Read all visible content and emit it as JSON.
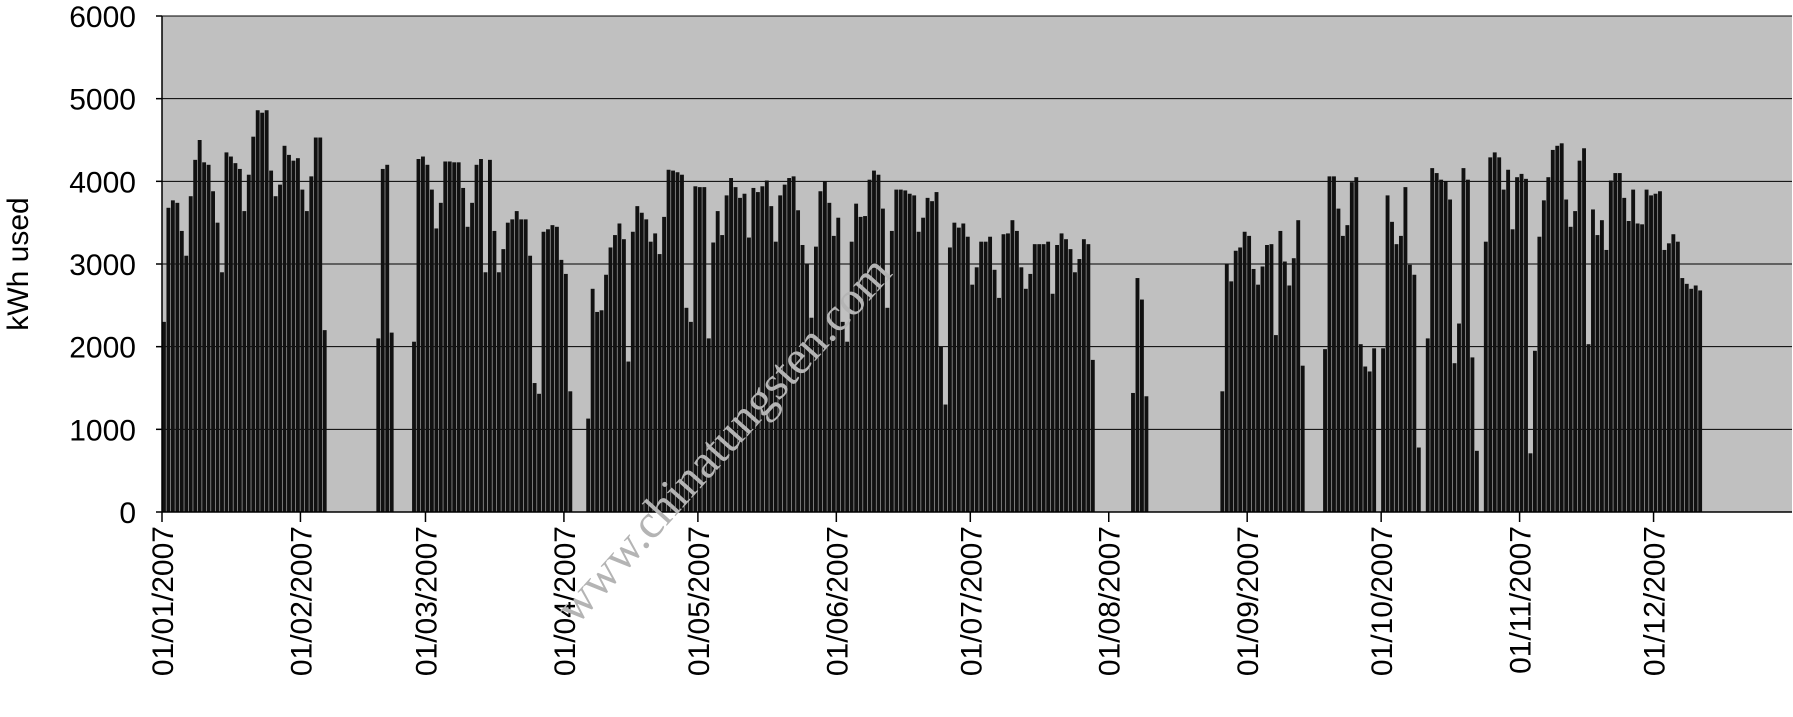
{
  "chart_data": {
    "type": "bar",
    "title": "",
    "xlabel": "",
    "ylabel": "kWh used",
    "ylim": [
      0,
      6000
    ],
    "y_ticks": [
      0,
      1000,
      2000,
      3000,
      4000,
      5000,
      6000
    ],
    "x_range": [
      "2007-01-01",
      "2008-01-01"
    ],
    "grid": true,
    "plot_background": "#c0c0c0",
    "bar_color": "#111111",
    "x_tick_labels": [
      {
        "date": "2007-01-01",
        "label": "01/01/2007"
      },
      {
        "date": "2007-02-01",
        "label": "01/02/2007"
      },
      {
        "date": "2007-03-01",
        "label": "01/03/2007"
      },
      {
        "date": "2007-04-01",
        "label": "01/04/2007"
      },
      {
        "date": "2007-05-01",
        "label": "01/05/2007"
      },
      {
        "date": "2007-06-01",
        "label": "01/06/2007"
      },
      {
        "date": "2007-07-01",
        "label": "01/07/2007"
      },
      {
        "date": "2007-08-01",
        "label": "01/08/2007"
      },
      {
        "date": "2007-09-01",
        "label": "01/09/2007"
      },
      {
        "date": "2007-10-01",
        "label": "01/10/2007"
      },
      {
        "date": "2007-11-01",
        "label": "01/11/2007"
      },
      {
        "date": "2007-12-01",
        "label": "01/12/2007"
      }
    ],
    "series": [
      {
        "start_date": "2007-01-01",
        "values": [
          2300,
          3680,
          3770,
          3740,
          3400,
          3100,
          3820,
          4260,
          4500,
          4230,
          4200,
          3880,
          3500,
          2900,
          4350,
          4300,
          4220,
          4150,
          3640,
          4080,
          4540,
          4860,
          4830,
          4860,
          4130,
          3820,
          3960,
          4430,
          4320,
          4250,
          4280,
          3900,
          3640,
          4060,
          4530,
          4530,
          2200,
          null,
          null,
          null,
          null,
          null,
          null,
          null,
          null,
          null,
          null,
          null,
          2100,
          4150,
          4200,
          2170,
          null,
          null,
          null,
          null,
          2060,
          4270,
          4300,
          4200,
          3900,
          3430,
          3740,
          4240,
          4240,
          4230,
          4230,
          3920,
          3450,
          3740,
          4200,
          4270,
          2900,
          4260,
          3400,
          2900,
          3180,
          3500,
          3540,
          3640,
          3540,
          3540,
          3100,
          1560,
          1430,
          3390,
          3420,
          3470,
          3450,
          3050,
          2880,
          1460,
          null,
          null,
          null,
          1130,
          2700,
          2420,
          2440,
          2870,
          3200,
          3350,
          3490,
          3300,
          1820,
          3390,
          3700,
          3620,
          3540,
          3270,
          3370,
          3120,
          3570,
          4140,
          4130,
          4110,
          4080,
          2470,
          2300,
          3940,
          3930,
          3930,
          2100,
          3260,
          3640,
          3350,
          3830,
          4040,
          3930,
          3800,
          3850,
          3320,
          3920,
          3870,
          3940,
          4010,
          3700,
          3270,
          3830,
          3960,
          4040,
          4060,
          3650,
          3230,
          3000,
          2350,
          3210,
          3880,
          4000,
          3740,
          3340,
          3560,
          2300,
          2060,
          3270,
          3730,
          3570,
          3580,
          4020,
          4130,
          4080,
          3670,
          2470,
          3400,
          3900,
          3900,
          3890,
          3850,
          3830,
          3390,
          3560,
          3800,
          3760,
          3870,
          2000,
          1300,
          3200,
          3500,
          3440,
          3490,
          3330,
          2750,
          2960,
          3270,
          3270,
          3330,
          2930,
          2590,
          3360,
          3370,
          3530,
          3400,
          2960,
          2700,
          2880,
          3240,
          3240,
          3240,
          3270,
          2640,
          3230,
          3370,
          3300,
          3180,
          2900,
          3060,
          3300,
          3240,
          1840,
          null,
          null,
          null,
          null,
          null,
          null,
          null,
          null,
          1440,
          2830,
          2570,
          1400,
          null,
          null,
          null,
          null,
          null,
          null,
          null,
          null,
          null,
          null,
          null,
          null,
          null,
          null,
          null,
          null,
          1460,
          3000,
          2790,
          3160,
          3200,
          3390,
          3340,
          2940,
          2750,
          2970,
          3230,
          3240,
          2140,
          3400,
          3030,
          2740,
          3070,
          3530,
          1770,
          null,
          null,
          null,
          null,
          1970,
          4060,
          4060,
          3670,
          3340,
          3470,
          3990,
          4050,
          2030,
          1760,
          1700,
          1980,
          null,
          1980,
          3830,
          3510,
          3240,
          3340,
          3930,
          2990,
          2870,
          780,
          null,
          2100,
          4160,
          4100,
          4020,
          4000,
          3780,
          1800,
          2280,
          4160,
          4020,
          1870,
          740,
          null,
          3270,
          4290,
          4350,
          4290,
          3900,
          4140,
          3420,
          4050,
          4090,
          4030,
          710,
          1950,
          3330,
          3770,
          4050,
          4380,
          4430,
          4460,
          3780,
          3450,
          3640,
          4250,
          4400,
          2030,
          3660,
          3350,
          3530,
          3170,
          4010,
          4100,
          4100,
          3800,
          3520,
          3900,
          3490,
          3480,
          3900,
          3830,
          3850,
          3880,
          3170,
          3250,
          3360,
          3270,
          2830,
          2760,
          2700,
          2740,
          2680
        ]
      }
    ]
  },
  "watermark": {
    "text": "www.chinatungsten.com"
  }
}
